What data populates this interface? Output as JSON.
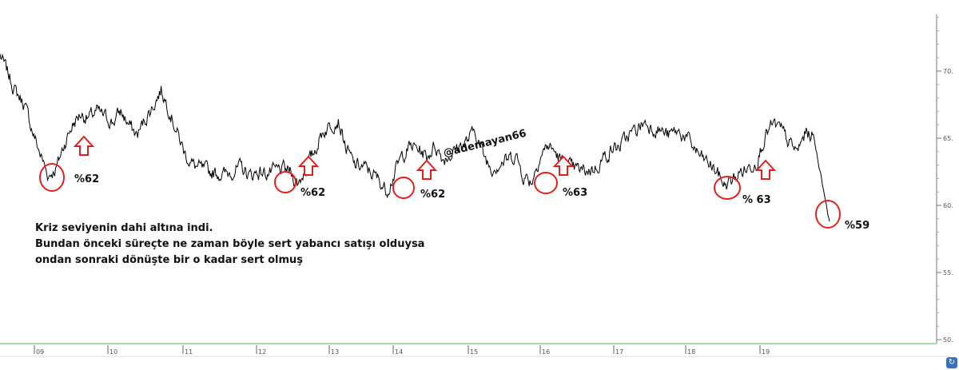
{
  "chart_data": {
    "type": "line",
    "x_tick_labels": [
      "09",
      "10",
      "11",
      "12",
      "13",
      "14",
      "15",
      "16",
      "17",
      "18",
      "19"
    ],
    "y_tick_labels": [
      "50.",
      "55.",
      "60.",
      "65.",
      "70."
    ],
    "ylim": [
      50,
      75
    ],
    "y_axis_position": "right",
    "grid": false,
    "series": [
      {
        "values": [
          71.2,
          69.8,
          68.4,
          67.6,
          65.6,
          63.8,
          62.2,
          62.8,
          64.6,
          66.0,
          66.8,
          66.5,
          67.0,
          66.6,
          66.2,
          67.0,
          66.0,
          65.2,
          66.4,
          67.4,
          68.6,
          67.2,
          65.4,
          63.8,
          63.0,
          62.7,
          62.5,
          62.4,
          62.3,
          62.6,
          62.8,
          62.2,
          62.5,
          62.4,
          62.5,
          62.7,
          62.5,
          61.6,
          62.8,
          64.0,
          65.4,
          66.0,
          66.4,
          64.2,
          63.0,
          62.9,
          62.5,
          61.9,
          61.1,
          62.4,
          63.8,
          64.4,
          64.2,
          63.6,
          64.5,
          63.5,
          63.8,
          64.4,
          64.8,
          65.6,
          63.8,
          62.8,
          63.1,
          63.4,
          63.8,
          62.2,
          61.8,
          63.6,
          64.5,
          63.9,
          63.0,
          62.8,
          62.6,
          62.6,
          62.8,
          63.6,
          64.2,
          64.4,
          65.2,
          65.6,
          66.2,
          65.8,
          65.6,
          65.2,
          65.5,
          65.2,
          64.4,
          63.6,
          63.1,
          62.5,
          61.5,
          61.9,
          62.5,
          62.8,
          63.4,
          65.2,
          66.0,
          65.6,
          64.6,
          64.0,
          65.4,
          65.2,
          62.0,
          58.8
        ],
        "color": "#000000"
      }
    ]
  },
  "annotations": {
    "watermark": "@ademayan66",
    "low_labels": [
      "%62",
      "%62",
      "%62",
      "%63",
      "% 63",
      "%59"
    ],
    "note_lines": [
      "Kriz seviyenin dahi altına indi.",
      "Bundan önceki süreçte ne zaman böyle sert yabancı satışı olduysa",
      "ondan sonraki dönüşte bir o kadar sert olmuş"
    ],
    "colors": {
      "marker": "#e02020",
      "line": "#000000",
      "baseline": "#8fce8f"
    }
  }
}
